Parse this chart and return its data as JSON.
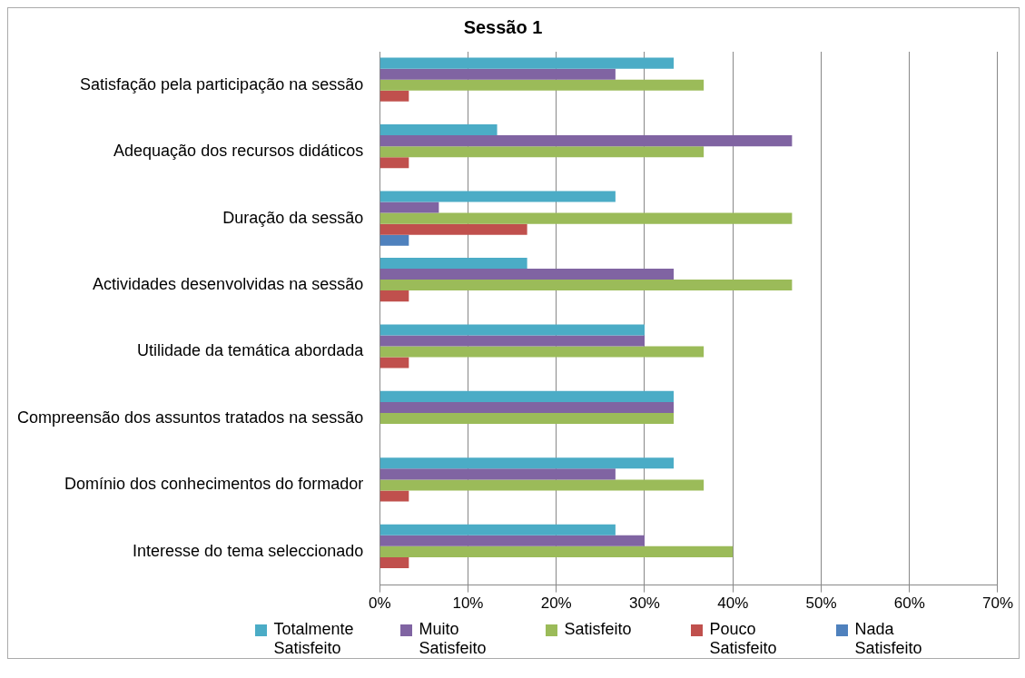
{
  "chart_data": {
    "type": "bar",
    "orientation": "horizontal",
    "title": "Sessão 1",
    "categories": [
      "Satisfação pela participação na sessão",
      "Adequação dos recursos didáticos",
      "Duração da sessão",
      "Actividades desenvolvidas na sessão",
      "Utilidade da temática abordada",
      "Compreensão dos assuntos tratados na sessão",
      "Domínio dos conhecimentos do formador",
      "Interesse do tema seleccionado"
    ],
    "series": [
      {
        "name": "Totalmente Satisfeito",
        "color": "#4bacc6",
        "values": [
          33.3,
          13.3,
          26.7,
          16.7,
          30,
          33.3,
          33.3,
          26.7
        ]
      },
      {
        "name": "Muito Satisfeito",
        "color": "#8064a2",
        "values": [
          26.7,
          46.7,
          6.7,
          33.3,
          30,
          33.3,
          26.7,
          30
        ]
      },
      {
        "name": "Satisfeito",
        "color": "#9bbb59",
        "values": [
          36.7,
          36.7,
          46.7,
          46.7,
          36.7,
          33.3,
          36.7,
          40
        ]
      },
      {
        "name": "Pouco Satisfeito",
        "color": "#c0504d",
        "values": [
          3.3,
          3.3,
          16.7,
          3.3,
          3.3,
          0,
          3.3,
          3.3
        ]
      },
      {
        "name": "Nada Satisfeito",
        "color": "#4f81bd",
        "values": [
          0,
          0,
          3.3,
          0,
          0,
          0,
          0,
          0
        ]
      }
    ],
    "xlim": [
      0,
      70
    ],
    "xticks": [
      {
        "value": 0,
        "label": "0%"
      },
      {
        "value": 10,
        "label": "10%"
      },
      {
        "value": 20,
        "label": "20%"
      },
      {
        "value": 30,
        "label": "30%"
      },
      {
        "value": 40,
        "label": "40%"
      },
      {
        "value": 50,
        "label": "50%"
      },
      {
        "value": 60,
        "label": "60%"
      },
      {
        "value": 70,
        "label": "70%"
      }
    ],
    "grid": "x",
    "legend": "bottom"
  }
}
